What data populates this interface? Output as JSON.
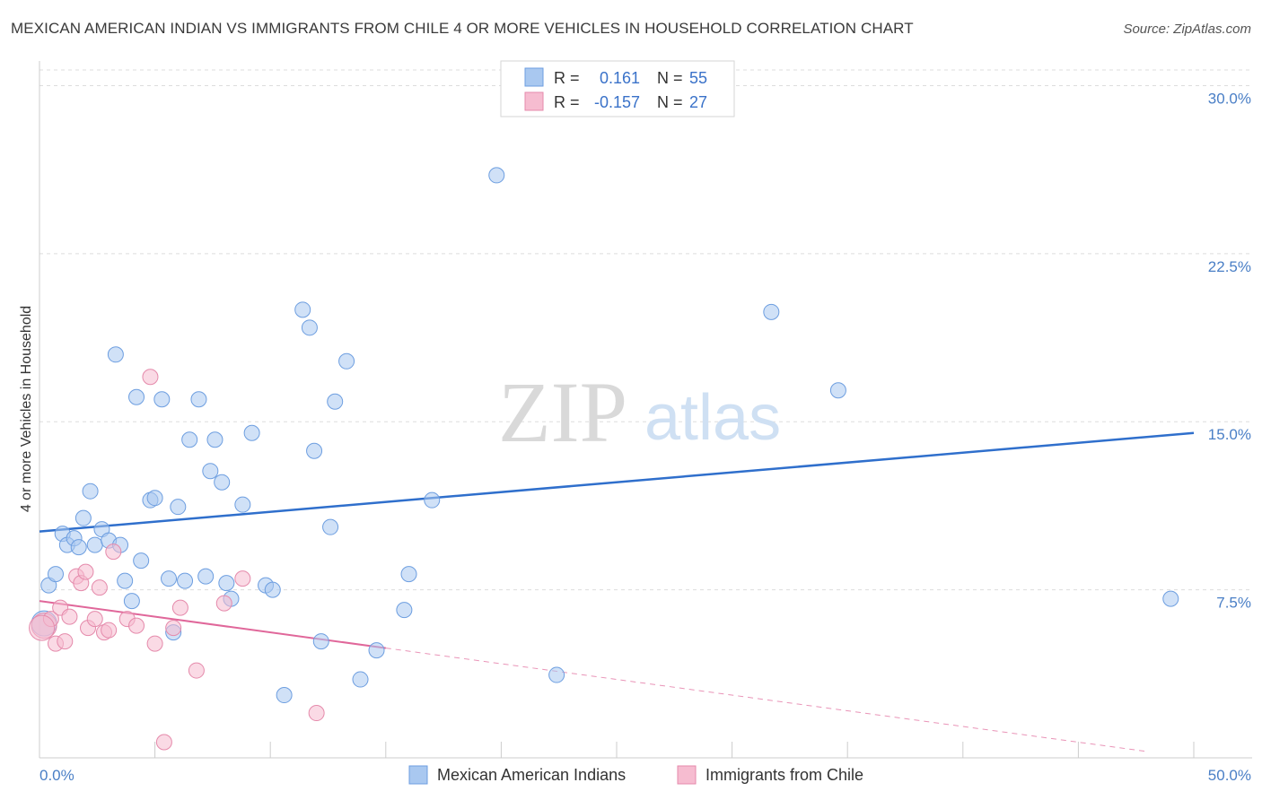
{
  "title": "MEXICAN AMERICAN INDIAN VS IMMIGRANTS FROM CHILE 4 OR MORE VEHICLES IN HOUSEHOLD CORRELATION CHART",
  "source": "Source: ZipAtlas.com",
  "watermark": {
    "zip": "ZIP",
    "atlas": "atlas"
  },
  "legend": {
    "r_label": "R =",
    "n_label": "N =",
    "rows": [
      {
        "name": "Mexican American Indians",
        "r": "0.161",
        "n": "55",
        "color": "#a9c8f0",
        "stroke": "#6d9ee0"
      },
      {
        "name": "Immigrants from Chile",
        "r": "-0.157",
        "n": "27",
        "color": "#f6bcd0",
        "stroke": "#e58aab"
      }
    ]
  },
  "chart_data": {
    "type": "scatter",
    "title": "MEXICAN AMERICAN INDIAN VS IMMIGRANTS FROM CHILE 4 OR MORE VEHICLES IN HOUSEHOLD CORRELATION CHART",
    "xlabel": "",
    "ylabel": "4 or more Vehicles in Household",
    "xlim": [
      0,
      50
    ],
    "ylim": [
      0,
      30
    ],
    "x_tick_labels": [
      "0.0%",
      "50.0%"
    ],
    "y_ticks": [
      7.5,
      15.0,
      22.5,
      30.0
    ],
    "y_tick_labels": [
      "7.5%",
      "15.0%",
      "22.5%",
      "30.0%"
    ],
    "series": [
      {
        "name": "Mexican American Indians",
        "color": "#a9c8f0",
        "stroke": "#6d9ee0",
        "trend": {
          "x": [
            0,
            50
          ],
          "y": [
            10.1,
            14.5
          ],
          "color": "#2f6fcc"
        },
        "points": [
          [
            0.2,
            6.0
          ],
          [
            0.4,
            7.7
          ],
          [
            0.7,
            8.2
          ],
          [
            1.0,
            10.0
          ],
          [
            1.2,
            9.5
          ],
          [
            1.5,
            9.8
          ],
          [
            1.7,
            9.4
          ],
          [
            1.9,
            10.7
          ],
          [
            2.2,
            11.9
          ],
          [
            2.4,
            9.5
          ],
          [
            2.7,
            10.2
          ],
          [
            3.0,
            9.7
          ],
          [
            3.3,
            18.0
          ],
          [
            3.5,
            9.5
          ],
          [
            3.7,
            7.9
          ],
          [
            4.0,
            7.0
          ],
          [
            4.2,
            16.1
          ],
          [
            4.4,
            8.8
          ],
          [
            4.8,
            11.5
          ],
          [
            5.0,
            11.6
          ],
          [
            5.3,
            16.0
          ],
          [
            5.6,
            8.0
          ],
          [
            5.8,
            5.6
          ],
          [
            6.0,
            11.2
          ],
          [
            6.3,
            7.9
          ],
          [
            6.5,
            14.2
          ],
          [
            6.9,
            16.0
          ],
          [
            7.2,
            8.1
          ],
          [
            7.4,
            12.8
          ],
          [
            7.6,
            14.2
          ],
          [
            7.9,
            12.3
          ],
          [
            8.1,
            7.8
          ],
          [
            8.3,
            7.1
          ],
          [
            8.8,
            11.3
          ],
          [
            9.2,
            14.5
          ],
          [
            9.8,
            7.7
          ],
          [
            10.1,
            7.5
          ],
          [
            10.6,
            2.8
          ],
          [
            11.4,
            20.0
          ],
          [
            11.7,
            19.2
          ],
          [
            11.9,
            13.7
          ],
          [
            12.2,
            5.2
          ],
          [
            12.6,
            10.3
          ],
          [
            12.8,
            15.9
          ],
          [
            13.3,
            17.7
          ],
          [
            13.9,
            3.5
          ],
          [
            14.6,
            4.8
          ],
          [
            15.8,
            6.6
          ],
          [
            16.0,
            8.2
          ],
          [
            17.0,
            11.5
          ],
          [
            19.8,
            26.0
          ],
          [
            22.4,
            3.7
          ],
          [
            31.7,
            19.9
          ],
          [
            34.6,
            16.4
          ],
          [
            49.0,
            7.1
          ]
        ]
      },
      {
        "name": "Immigrants from Chile",
        "color": "#f6bcd0",
        "stroke": "#e58aab",
        "trend": {
          "x": [
            0,
            50
          ],
          "y": [
            7.0,
            0.0
          ],
          "solid_until_x": 15.0,
          "color": "#e0679a"
        },
        "points": [
          [
            0.2,
            5.9
          ],
          [
            0.5,
            6.2
          ],
          [
            0.7,
            5.1
          ],
          [
            0.9,
            6.7
          ],
          [
            1.1,
            5.2
          ],
          [
            1.3,
            6.3
          ],
          [
            1.6,
            8.1
          ],
          [
            1.8,
            7.8
          ],
          [
            2.0,
            8.3
          ],
          [
            2.1,
            5.8
          ],
          [
            2.4,
            6.2
          ],
          [
            2.6,
            7.6
          ],
          [
            2.8,
            5.6
          ],
          [
            3.0,
            5.7
          ],
          [
            3.2,
            9.2
          ],
          [
            3.8,
            6.2
          ],
          [
            4.2,
            5.9
          ],
          [
            4.8,
            17.0
          ],
          [
            5.0,
            5.1
          ],
          [
            5.4,
            0.7
          ],
          [
            5.8,
            5.8
          ],
          [
            6.1,
            6.7
          ],
          [
            6.8,
            3.9
          ],
          [
            8.0,
            6.9
          ],
          [
            8.8,
            8.0
          ],
          [
            12.0,
            2.0
          ],
          [
            0.1,
            5.8
          ]
        ]
      }
    ]
  }
}
